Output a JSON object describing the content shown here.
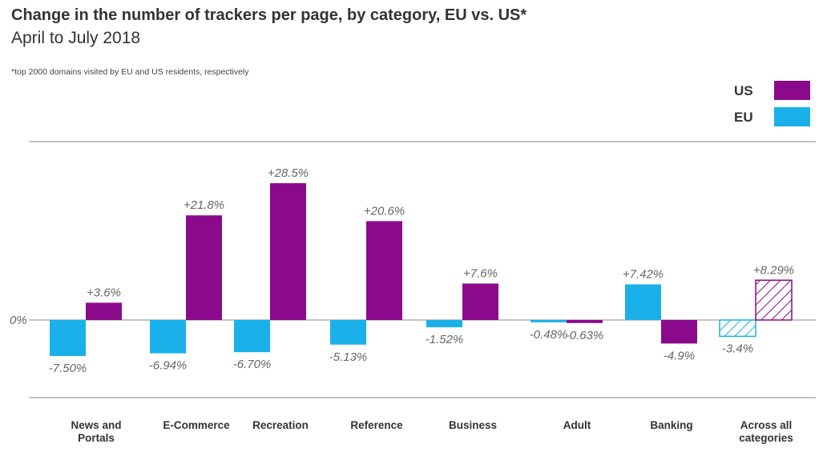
{
  "chart_data": {
    "type": "bar",
    "title": "Change in the number of trackers per page, by category, EU vs. US*",
    "subtitle": "April to July 2018",
    "footnote": "*top 2000 domains visited by EU and US residents, respectively",
    "zero_label": "0%",
    "categories": [
      [
        "News and",
        "Portals"
      ],
      [
        "E-Commerce"
      ],
      [
        "Recreation"
      ],
      [
        "Reference"
      ],
      [
        "Business"
      ],
      [
        "Adult"
      ],
      [
        "Banking"
      ],
      [
        "Across all",
        "categories"
      ]
    ],
    "series": [
      {
        "name": "EU",
        "color": "#1ab0ea",
        "values": [
          -7.5,
          -6.94,
          -6.7,
          -5.13,
          -1.52,
          -0.48,
          7.42,
          -3.4
        ],
        "labels": [
          "-7.50%",
          "-6.94%",
          "-6.70%",
          "-5.13%",
          "-1.52%",
          "-0.48%",
          "+7.42%",
          "-3.4%"
        ]
      },
      {
        "name": "US",
        "color": "#8b0a8b",
        "values": [
          3.6,
          21.8,
          28.5,
          20.6,
          7.6,
          -0.63,
          -4.9,
          8.29
        ],
        "labels": [
          "+3.6%",
          "+21.8%",
          "+28.5%",
          "+20.6%",
          "+7.6%",
          "-0.63%",
          "-4.9%",
          "+8.29%"
        ]
      }
    ],
    "hatched_category": "Across all categories",
    "legend": [
      {
        "name": "US",
        "color": "#8b0a8b"
      },
      {
        "name": "EU",
        "color": "#1ab0ea"
      }
    ],
    "legend_position": "top-right",
    "ylim": [
      -16,
      38
    ],
    "grid": false
  }
}
